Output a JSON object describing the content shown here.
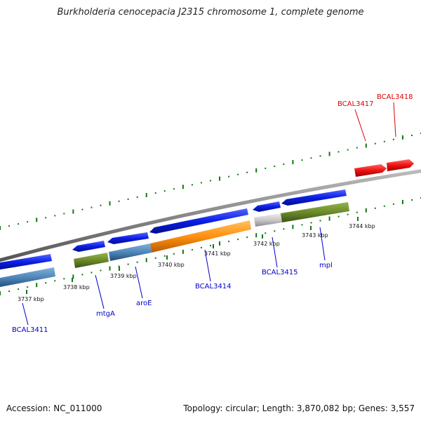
{
  "header": {
    "title": "Burkholderia cenocepacia J2315 chromosome 1, complete genome"
  },
  "footer": {
    "accession": "Accession: NC_011000",
    "summary": "Topology: circular; Length: 3,870,082 bp; Genes: 3,557"
  },
  "colors": {
    "backbone": "#888888",
    "forward_gene": "#0a1ee6",
    "selected_gene": "#ee1111",
    "cds_blue": "#4f86b8",
    "cds_green": "#6b8a2a",
    "cds_orange": "#ff9010",
    "cds_gray": "#c8c8c8",
    "tick": "#117711",
    "label_blue": "#0000cc",
    "label_red": "#dd0000"
  },
  "ticks": [
    {
      "label": "3737 kbp"
    },
    {
      "label": "3738 kbp"
    },
    {
      "label": "3739 kbp"
    },
    {
      "label": "3740 kbp"
    },
    {
      "label": "3741 kbp"
    },
    {
      "label": "3742 kbp"
    },
    {
      "label": "3743 kbp"
    },
    {
      "label": "3744 kbp"
    }
  ],
  "gene_labels": [
    {
      "name": "BCAL3411",
      "color": "blue"
    },
    {
      "name": "mtgA",
      "color": "blue"
    },
    {
      "name": "aroE",
      "color": "blue"
    },
    {
      "name": "BCAL3414",
      "color": "blue"
    },
    {
      "name": "BCAL3415",
      "color": "blue"
    },
    {
      "name": "mpl",
      "color": "blue"
    },
    {
      "name": "BCAL3417",
      "color": "red"
    },
    {
      "name": "BCAL3418",
      "color": "red"
    }
  ]
}
